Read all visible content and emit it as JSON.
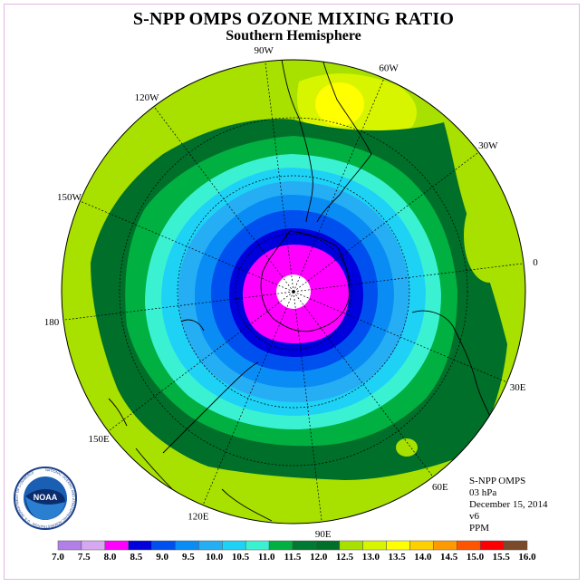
{
  "title": "S-NPP OMPS OZONE MIXING RATIO",
  "subtitle": "Southern Hemisphere",
  "info": {
    "instrument": "S-NPP OMPS",
    "level": "03 hPa",
    "date": "December 15, 2014",
    "version": "v6",
    "units": "PPM"
  },
  "logo": {
    "text": "NOAA",
    "ring_text": "NATIONAL OCEANIC AND ATMOSPHERIC ADMINISTRATION · U.S. DEPARTMENT OF COMMERCE"
  },
  "longitude_labels": [
    "90W",
    "60W",
    "30W",
    "0",
    "30E",
    "60E",
    "90E",
    "120E",
    "150E",
    "180",
    "150W",
    "120W"
  ],
  "colorbar": {
    "ticks": [
      "7.0",
      "7.5",
      "8.0",
      "8.5",
      "9.0",
      "9.5",
      "10.0",
      "10.5",
      "11.0",
      "11.5",
      "12.0",
      "12.5",
      "13.0",
      "13.5",
      "14.0",
      "14.5",
      "15.0",
      "15.5",
      "16.0"
    ],
    "colors": [
      "#b07fe8",
      "#d6a8f2",
      "#ff00ff",
      "#0000dd",
      "#0050f0",
      "#0a8cf5",
      "#26aef5",
      "#1ed2f6",
      "#3af2d2",
      "#00b040",
      "#007a30",
      "#006f2a",
      "#a8e000",
      "#d8f500",
      "#ffff00",
      "#ffd000",
      "#ff9900",
      "#ff5500",
      "#ff0000",
      "#7a4a2a"
    ]
  },
  "chart_data": {
    "type": "heatmap",
    "projection": "polar stereographic, south pole centered",
    "quantity": "ozone mixing ratio",
    "units": "PPM",
    "pressure_level": "03 hPa",
    "date": "December 15, 2014",
    "color_levels": [
      7.0,
      7.5,
      8.0,
      8.5,
      9.0,
      9.5,
      10.0,
      10.5,
      11.0,
      11.5,
      12.0,
      12.5,
      13.0,
      13.5,
      14.0,
      14.5,
      15.0,
      15.5,
      16.0
    ],
    "field_bands": [
      {
        "min": 8.0,
        "max": 8.5,
        "region": "south pole, polar cap"
      },
      {
        "min": 8.5,
        "max": 9.0,
        "region": "ring around polar cap"
      },
      {
        "min": 9.0,
        "max": 9.5,
        "region": "high southern latitudes"
      },
      {
        "min": 9.5,
        "max": 10.0,
        "region": "high southern latitudes"
      },
      {
        "min": 10.0,
        "max": 10.5,
        "region": "mid southern latitudes"
      },
      {
        "min": 10.5,
        "max": 11.0,
        "region": "mid southern latitudes"
      },
      {
        "min": 11.0,
        "max": 11.5,
        "region": "mid southern latitudes"
      },
      {
        "min": 11.5,
        "max": 12.0,
        "region": "subtropics"
      },
      {
        "min": 12.0,
        "max": 12.5,
        "region": "subtropics"
      },
      {
        "min": 12.5,
        "max": 13.0,
        "region": "tropics, outer edge"
      },
      {
        "min": 13.0,
        "max": 13.5,
        "region": "tropics near 60W"
      },
      {
        "min": 13.5,
        "max": 14.0,
        "region": "local maximum near 60W"
      }
    ],
    "grid": true
  }
}
